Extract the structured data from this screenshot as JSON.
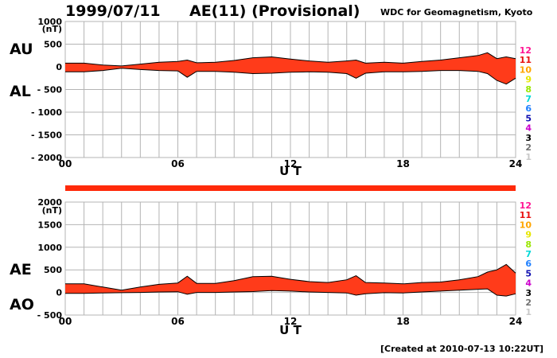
{
  "header": {
    "date": "1999/07/11",
    "title": "AE(11) (Provisional)",
    "source": "WDC for Geomagnetism, Kyoto"
  },
  "footer": {
    "created": "[Created at 2010-07-13 10:22UT]"
  },
  "legend_levels": [
    {
      "label": "12",
      "color": "#ff1493"
    },
    {
      "label": "11",
      "color": "#e81010"
    },
    {
      "label": "10",
      "color": "#ffa500"
    },
    {
      "label": "9",
      "color": "#e6e600"
    },
    {
      "label": "8",
      "color": "#99e600"
    },
    {
      "label": "7",
      "color": "#00d8d8"
    },
    {
      "label": "6",
      "color": "#1e7fff"
    },
    {
      "label": "5",
      "color": "#1010b0"
    },
    {
      "label": "4",
      "color": "#cc00cc"
    },
    {
      "label": "3",
      "color": "#000000"
    },
    {
      "label": "2",
      "color": "#707070"
    },
    {
      "label": "1",
      "color": "#c8c8c8"
    }
  ],
  "colors": {
    "fill": "#ff3b1a",
    "bar": "#ff2a0a",
    "grid": "#b4b4b4",
    "outline": "#000000"
  },
  "chart_data": [
    {
      "type": "area",
      "name": "AU/AL",
      "series_labels": {
        "upper": "AU",
        "lower": "AL"
      },
      "ylabel": "(nT)",
      "xlabel": "U T",
      "xlim": [
        0,
        24
      ],
      "ylim": [
        -2000,
        1000
      ],
      "yticks": [
        1000,
        500,
        0,
        -500,
        -1000,
        -1500,
        -2000
      ],
      "ytick_labels": [
        "1000",
        "500",
        "0",
        "- 500",
        "- 1000",
        "- 1500",
        "- 2000"
      ],
      "xticks": [
        0,
        6,
        12,
        18,
        24
      ],
      "xtick_labels": [
        "00",
        "06",
        "12",
        "18",
        "24"
      ],
      "x": [
        0,
        1,
        2,
        3,
        4,
        5,
        6,
        6.5,
        7,
        8,
        9,
        10,
        11,
        12,
        13,
        14,
        15,
        15.5,
        16,
        17,
        18,
        19,
        20,
        21,
        22,
        22.5,
        23,
        23.5,
        24
      ],
      "upper": [
        80,
        80,
        40,
        20,
        60,
        100,
        120,
        150,
        90,
        100,
        140,
        200,
        220,
        170,
        130,
        100,
        130,
        150,
        80,
        100,
        80,
        120,
        150,
        200,
        250,
        310,
        180,
        220,
        180
      ],
      "lower": [
        -110,
        -110,
        -80,
        -30,
        -60,
        -80,
        -90,
        -230,
        -100,
        -100,
        -120,
        -150,
        -140,
        -120,
        -110,
        -120,
        -150,
        -250,
        -140,
        -110,
        -110,
        -100,
        -80,
        -80,
        -100,
        -150,
        -300,
        -380,
        -250
      ]
    },
    {
      "type": "area",
      "name": "AE/AO",
      "series_labels": {
        "upper": "AE",
        "lower": "AO"
      },
      "ylabel": "(nT)",
      "xlabel": "U T",
      "xlim": [
        0,
        24
      ],
      "ylim": [
        -500,
        2000
      ],
      "yticks": [
        2000,
        1500,
        1000,
        500,
        0,
        -500
      ],
      "ytick_labels": [
        "2000",
        "1500",
        "1000",
        "500",
        "0",
        "- 500"
      ],
      "xticks": [
        0,
        6,
        12,
        18,
        24
      ],
      "xtick_labels": [
        "00",
        "06",
        "12",
        "18",
        "24"
      ],
      "x": [
        0,
        1,
        2,
        3,
        4,
        5,
        6,
        6.5,
        7,
        8,
        9,
        10,
        11,
        12,
        13,
        14,
        15,
        15.5,
        16,
        17,
        18,
        19,
        20,
        21,
        22,
        22.5,
        23,
        23.5,
        24
      ],
      "upper": [
        190,
        190,
        120,
        50,
        120,
        180,
        210,
        360,
        200,
        200,
        260,
        350,
        360,
        290,
        240,
        220,
        280,
        370,
        220,
        210,
        190,
        220,
        230,
        280,
        350,
        450,
        500,
        620,
        430
      ],
      "lower": [
        -20,
        -20,
        -10,
        -5,
        0,
        10,
        15,
        -40,
        0,
        0,
        10,
        20,
        40,
        30,
        10,
        0,
        -10,
        -60,
        -30,
        -5,
        -10,
        10,
        30,
        50,
        70,
        80,
        -60,
        -80,
        -30
      ]
    }
  ]
}
